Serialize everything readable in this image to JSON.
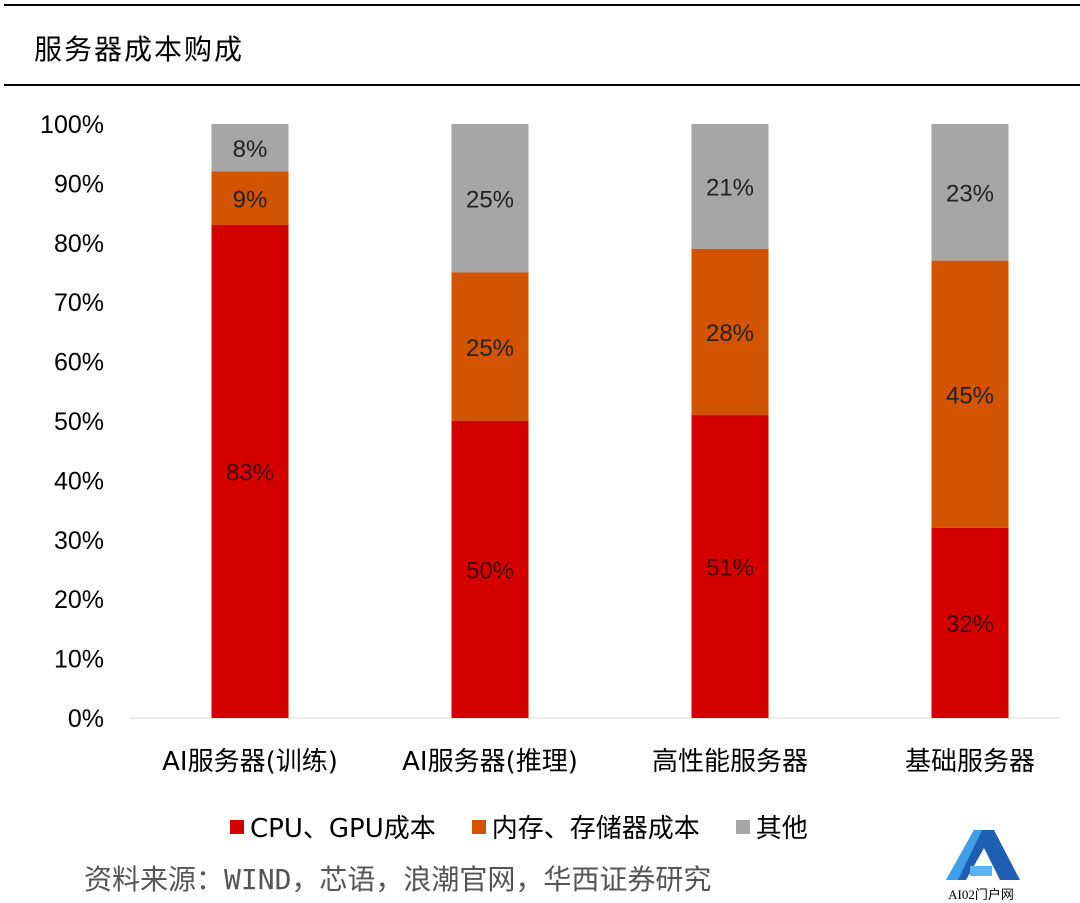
{
  "chart_data": {
    "type": "bar",
    "stacked": true,
    "title": "服务器成本购成",
    "categories": [
      "AI服务器(训练)",
      "AI服务器(推理)",
      "高性能服务器",
      "基础服务器"
    ],
    "series": [
      {
        "name": "CPU、GPU成本",
        "values": [
          83,
          50,
          51,
          32
        ],
        "color": "#d40000"
      },
      {
        "name": "内存、存储器成本",
        "values": [
          9,
          25,
          28,
          45
        ],
        "color": "#d35400"
      },
      {
        "name": "其他",
        "values": [
          8,
          25,
          21,
          23
        ],
        "color": "#a6a6a6"
      }
    ],
    "ylim": [
      0,
      100
    ],
    "yticks": [
      "0%",
      "10%",
      "20%",
      "30%",
      "40%",
      "50%",
      "60%",
      "70%",
      "80%",
      "90%",
      "100%"
    ],
    "data_labels": [
      [
        "83%",
        "50%",
        "51%",
        "32%"
      ],
      [
        "9%",
        "25%",
        "28%",
        "45%"
      ],
      [
        "8%",
        "25%",
        "21%",
        "23%"
      ]
    ],
    "grid": false,
    "legend": "bottom"
  },
  "source": "资料来源：WIND，芯语，浪潮官网，华西证券研究",
  "watermark": "AI02门户网"
}
